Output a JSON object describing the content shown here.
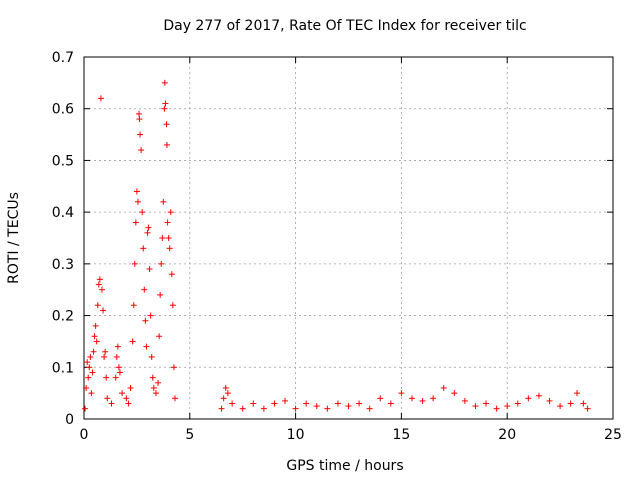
{
  "chart_data": {
    "type": "scatter",
    "title": "Day 277 of 2017, Rate Of TEC Index for receiver tilc",
    "xlabel": "GPS time / hours",
    "ylabel": "ROTI / TECUs",
    "xlim": [
      0,
      25
    ],
    "ylim": [
      0,
      0.7
    ],
    "xticks": [
      "0",
      "5",
      "10",
      "15",
      "20",
      "25"
    ],
    "yticks": [
      "0",
      "0.1",
      "0.2",
      "0.3",
      "0.4",
      "0.5",
      "0.6",
      "0.7"
    ],
    "grid": true,
    "marker": "+",
    "marker_color": "#ff0000",
    "series": [
      {
        "name": "ROTI",
        "points": [
          [
            0.05,
            0.02
          ],
          [
            0.1,
            0.06
          ],
          [
            0.15,
            0.11
          ],
          [
            0.2,
            0.08
          ],
          [
            0.25,
            0.1
          ],
          [
            0.3,
            0.12
          ],
          [
            0.35,
            0.05
          ],
          [
            0.4,
            0.09
          ],
          [
            0.45,
            0.13
          ],
          [
            0.5,
            0.16
          ],
          [
            0.55,
            0.18
          ],
          [
            0.6,
            0.15
          ],
          [
            0.65,
            0.22
          ],
          [
            0.7,
            0.26
          ],
          [
            0.75,
            0.27
          ],
          [
            0.8,
            0.62
          ],
          [
            0.85,
            0.25
          ],
          [
            0.9,
            0.21
          ],
          [
            0.95,
            0.12
          ],
          [
            1.0,
            0.13
          ],
          [
            1.05,
            0.08
          ],
          [
            1.1,
            0.04
          ],
          [
            1.3,
            0.03
          ],
          [
            1.5,
            0.08
          ],
          [
            1.55,
            0.12
          ],
          [
            1.6,
            0.14
          ],
          [
            1.65,
            0.1
          ],
          [
            1.7,
            0.09
          ],
          [
            1.8,
            0.05
          ],
          [
            2.0,
            0.04
          ],
          [
            2.1,
            0.03
          ],
          [
            2.2,
            0.06
          ],
          [
            2.3,
            0.15
          ],
          [
            2.35,
            0.22
          ],
          [
            2.4,
            0.3
          ],
          [
            2.45,
            0.38
          ],
          [
            2.5,
            0.44
          ],
          [
            2.55,
            0.42
          ],
          [
            2.6,
            0.59
          ],
          [
            2.62,
            0.58
          ],
          [
            2.65,
            0.55
          ],
          [
            2.7,
            0.52
          ],
          [
            2.75,
            0.4
          ],
          [
            2.8,
            0.33
          ],
          [
            2.85,
            0.25
          ],
          [
            2.9,
            0.19
          ],
          [
            2.95,
            0.14
          ],
          [
            3.0,
            0.36
          ],
          [
            3.05,
            0.37
          ],
          [
            3.1,
            0.29
          ],
          [
            3.15,
            0.2
          ],
          [
            3.2,
            0.12
          ],
          [
            3.25,
            0.08
          ],
          [
            3.3,
            0.06
          ],
          [
            3.4,
            0.05
          ],
          [
            3.5,
            0.07
          ],
          [
            3.55,
            0.16
          ],
          [
            3.6,
            0.24
          ],
          [
            3.65,
            0.3
          ],
          [
            3.7,
            0.35
          ],
          [
            3.75,
            0.42
          ],
          [
            3.8,
            0.6
          ],
          [
            3.82,
            0.65
          ],
          [
            3.85,
            0.61
          ],
          [
            3.9,
            0.57
          ],
          [
            3.92,
            0.53
          ],
          [
            3.95,
            0.38
          ],
          [
            4.0,
            0.35
          ],
          [
            4.05,
            0.33
          ],
          [
            4.1,
            0.4
          ],
          [
            4.15,
            0.28
          ],
          [
            4.2,
            0.22
          ],
          [
            4.25,
            0.1
          ],
          [
            4.3,
            0.04
          ],
          [
            6.5,
            0.02
          ],
          [
            6.6,
            0.04
          ],
          [
            6.7,
            0.06
          ],
          [
            6.8,
            0.05
          ],
          [
            7.0,
            0.03
          ],
          [
            7.5,
            0.02
          ],
          [
            8.0,
            0.03
          ],
          [
            8.5,
            0.02
          ],
          [
            9.0,
            0.03
          ],
          [
            9.5,
            0.035
          ],
          [
            10.0,
            0.02
          ],
          [
            10.5,
            0.03
          ],
          [
            11.0,
            0.025
          ],
          [
            11.5,
            0.02
          ],
          [
            12.0,
            0.03
          ],
          [
            12.5,
            0.025
          ],
          [
            13.0,
            0.03
          ],
          [
            13.5,
            0.02
          ],
          [
            14.0,
            0.04
          ],
          [
            14.5,
            0.03
          ],
          [
            15.0,
            0.05
          ],
          [
            15.5,
            0.04
          ],
          [
            16.0,
            0.035
          ],
          [
            16.5,
            0.04
          ],
          [
            17.0,
            0.06
          ],
          [
            17.5,
            0.05
          ],
          [
            18.0,
            0.035
          ],
          [
            18.5,
            0.025
          ],
          [
            19.0,
            0.03
          ],
          [
            19.5,
            0.02
          ],
          [
            20.0,
            0.025
          ],
          [
            20.5,
            0.03
          ],
          [
            21.0,
            0.04
          ],
          [
            21.5,
            0.045
          ],
          [
            22.0,
            0.035
          ],
          [
            22.5,
            0.025
          ],
          [
            23.0,
            0.03
          ],
          [
            23.3,
            0.05
          ],
          [
            23.6,
            0.03
          ],
          [
            23.8,
            0.02
          ]
        ]
      }
    ]
  }
}
